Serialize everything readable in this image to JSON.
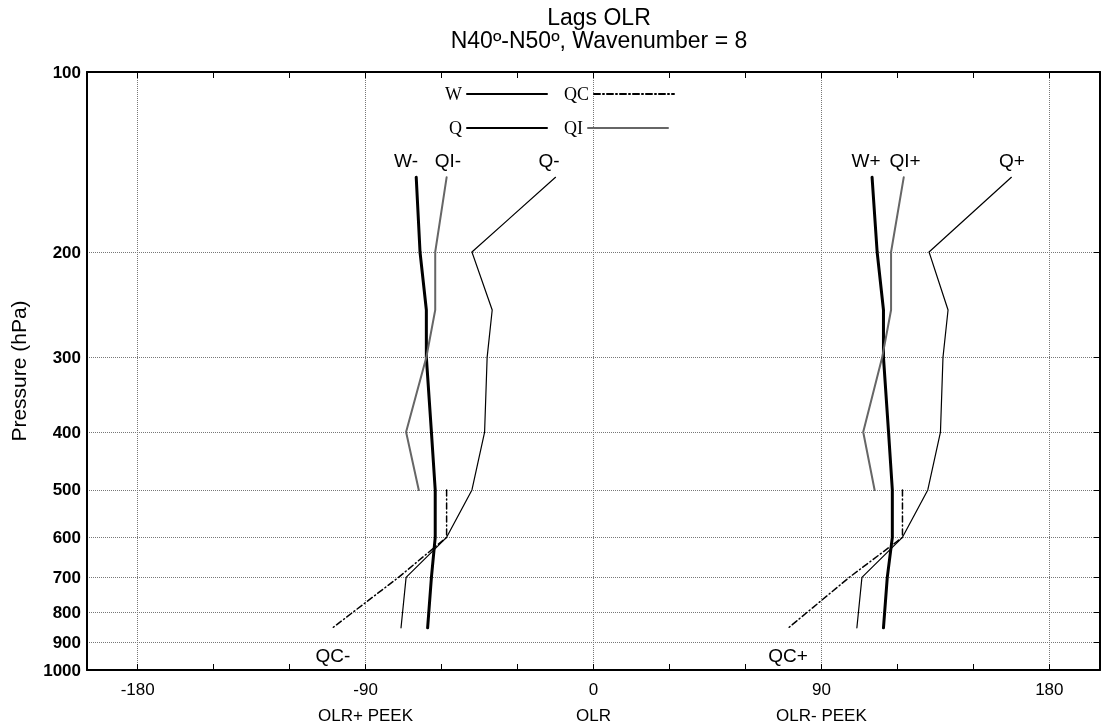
{
  "chart_data": {
    "type": "line",
    "title": "Lags OLR",
    "subtitle": "N40º-N50º, Wavenumber = 8",
    "ylabel": "Pressure (hPa)",
    "log": "y",
    "xlim": [
      -200,
      200
    ],
    "ylim": [
      1000,
      100
    ],
    "xticks": [
      {
        "value": -180,
        "label": "-180"
      },
      {
        "value": -150,
        "label": null
      },
      {
        "value": -120,
        "label": null
      },
      {
        "value": -90,
        "label": "-90\nOLR+ PEEK"
      },
      {
        "value": -60,
        "label": null
      },
      {
        "value": -30,
        "label": null
      },
      {
        "value": 0,
        "label": "0\nOLR"
      },
      {
        "value": 30,
        "label": null
      },
      {
        "value": 60,
        "label": null
      },
      {
        "value": 90,
        "label": "90\nOLR- PEEK"
      },
      {
        "value": 120,
        "label": null
      },
      {
        "value": 150,
        "label": null
      },
      {
        "value": 180,
        "label": "180"
      }
    ],
    "yticks": [
      100,
      200,
      300,
      400,
      500,
      600,
      700,
      800,
      900,
      1000
    ],
    "grid": true,
    "legend": "top",
    "marker": "none",
    "series": [
      {
        "name": "W",
        "color": "#000000",
        "line_style": "solid",
        "x": [
          -70,
          -68.5,
          -66,
          -66,
          -64,
          -62.5,
          -62.5,
          -64,
          -65.5,
          null,
          110,
          112,
          114.5,
          114.5,
          116.5,
          118,
          118,
          116,
          114.5
        ],
        "values": [
          150,
          200,
          250,
          300,
          400,
          500,
          600,
          700,
          850,
          null,
          150,
          200,
          250,
          300,
          400,
          500,
          600,
          700,
          850
        ]
      },
      {
        "name": "Q",
        "color": "#000000",
        "line_style": "solid",
        "x": [
          -15,
          -48,
          -40,
          -42,
          -43,
          -48,
          -58,
          -74,
          -76,
          null,
          165,
          132.5,
          140,
          138,
          137,
          132,
          122,
          106,
          104
        ],
        "values": [
          150,
          200,
          250,
          300,
          400,
          500,
          600,
          700,
          850,
          null,
          150,
          200,
          250,
          300,
          400,
          500,
          600,
          700,
          850
        ]
      },
      {
        "name": "QC",
        "color": "#000000",
        "line_style": "dashdot",
        "x": [
          -58,
          -58,
          -77,
          -103,
          null,
          122,
          122,
          101,
          77
        ],
        "values": [
          500,
          600,
          700,
          850,
          null,
          500,
          600,
          700,
          850
        ]
      },
      {
        "name": "QI",
        "color": "#666666",
        "line_style": "solid",
        "x": [
          -58,
          -62.5,
          -62.5,
          -66,
          -74,
          -69,
          null,
          122.5,
          117.5,
          117.5,
          114,
          106.5,
          111
        ],
        "values": [
          150,
          200,
          250,
          300,
          400,
          500,
          null,
          150,
          200,
          250,
          300,
          400,
          500
        ]
      }
    ],
    "annotations": [
      "W-",
      "QI-",
      "Q-",
      "W+",
      "QI+",
      "Q+",
      "QC-",
      "QC+"
    ]
  }
}
